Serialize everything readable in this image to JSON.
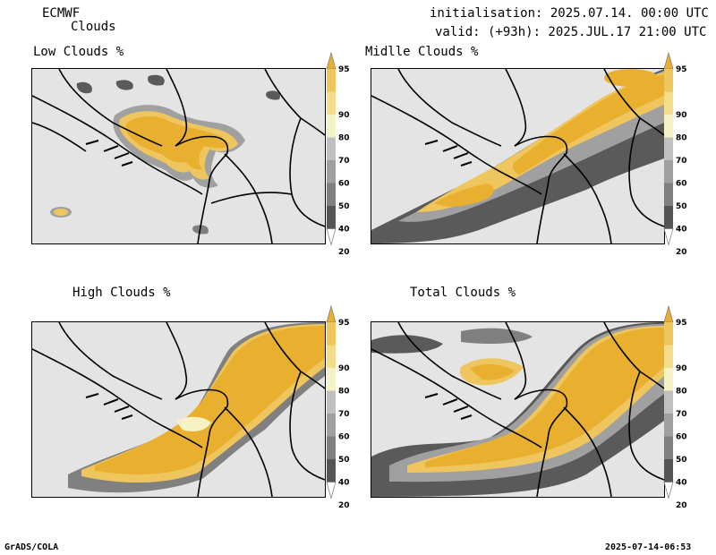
{
  "header": {
    "model": "ECMWF",
    "product": "Clouds",
    "init": "initialisation: 2025.07.14. 00:00 UTC",
    "valid": "valid: (+93h): 2025.JUL.17 21:00 UTC"
  },
  "panels": [
    {
      "title": "Low Clouds %"
    },
    {
      "title": "Midlle Clouds %"
    },
    {
      "title": "High Clouds %"
    },
    {
      "title": "Total Clouds %"
    }
  ],
  "colorbar": {
    "levels": [
      "20",
      "40",
      "50",
      "60",
      "70",
      "80",
      "90",
      "95"
    ],
    "colors": [
      "#ffffff",
      "#555555",
      "#808080",
      "#a0a0a0",
      "#c0c0c0",
      "#f5f3c4",
      "#f3dc8a",
      "#efc55d",
      "#e9b02f"
    ]
  },
  "colors": {
    "map_background": "#e4e4e4",
    "cloud_high": "#e9b02f",
    "cloud_mid": "#efc55d",
    "cloud_low_grey": "#5a5a5a"
  },
  "footer": {
    "left": "GrADS/COLA",
    "right": "2025-07-14-06:53"
  }
}
